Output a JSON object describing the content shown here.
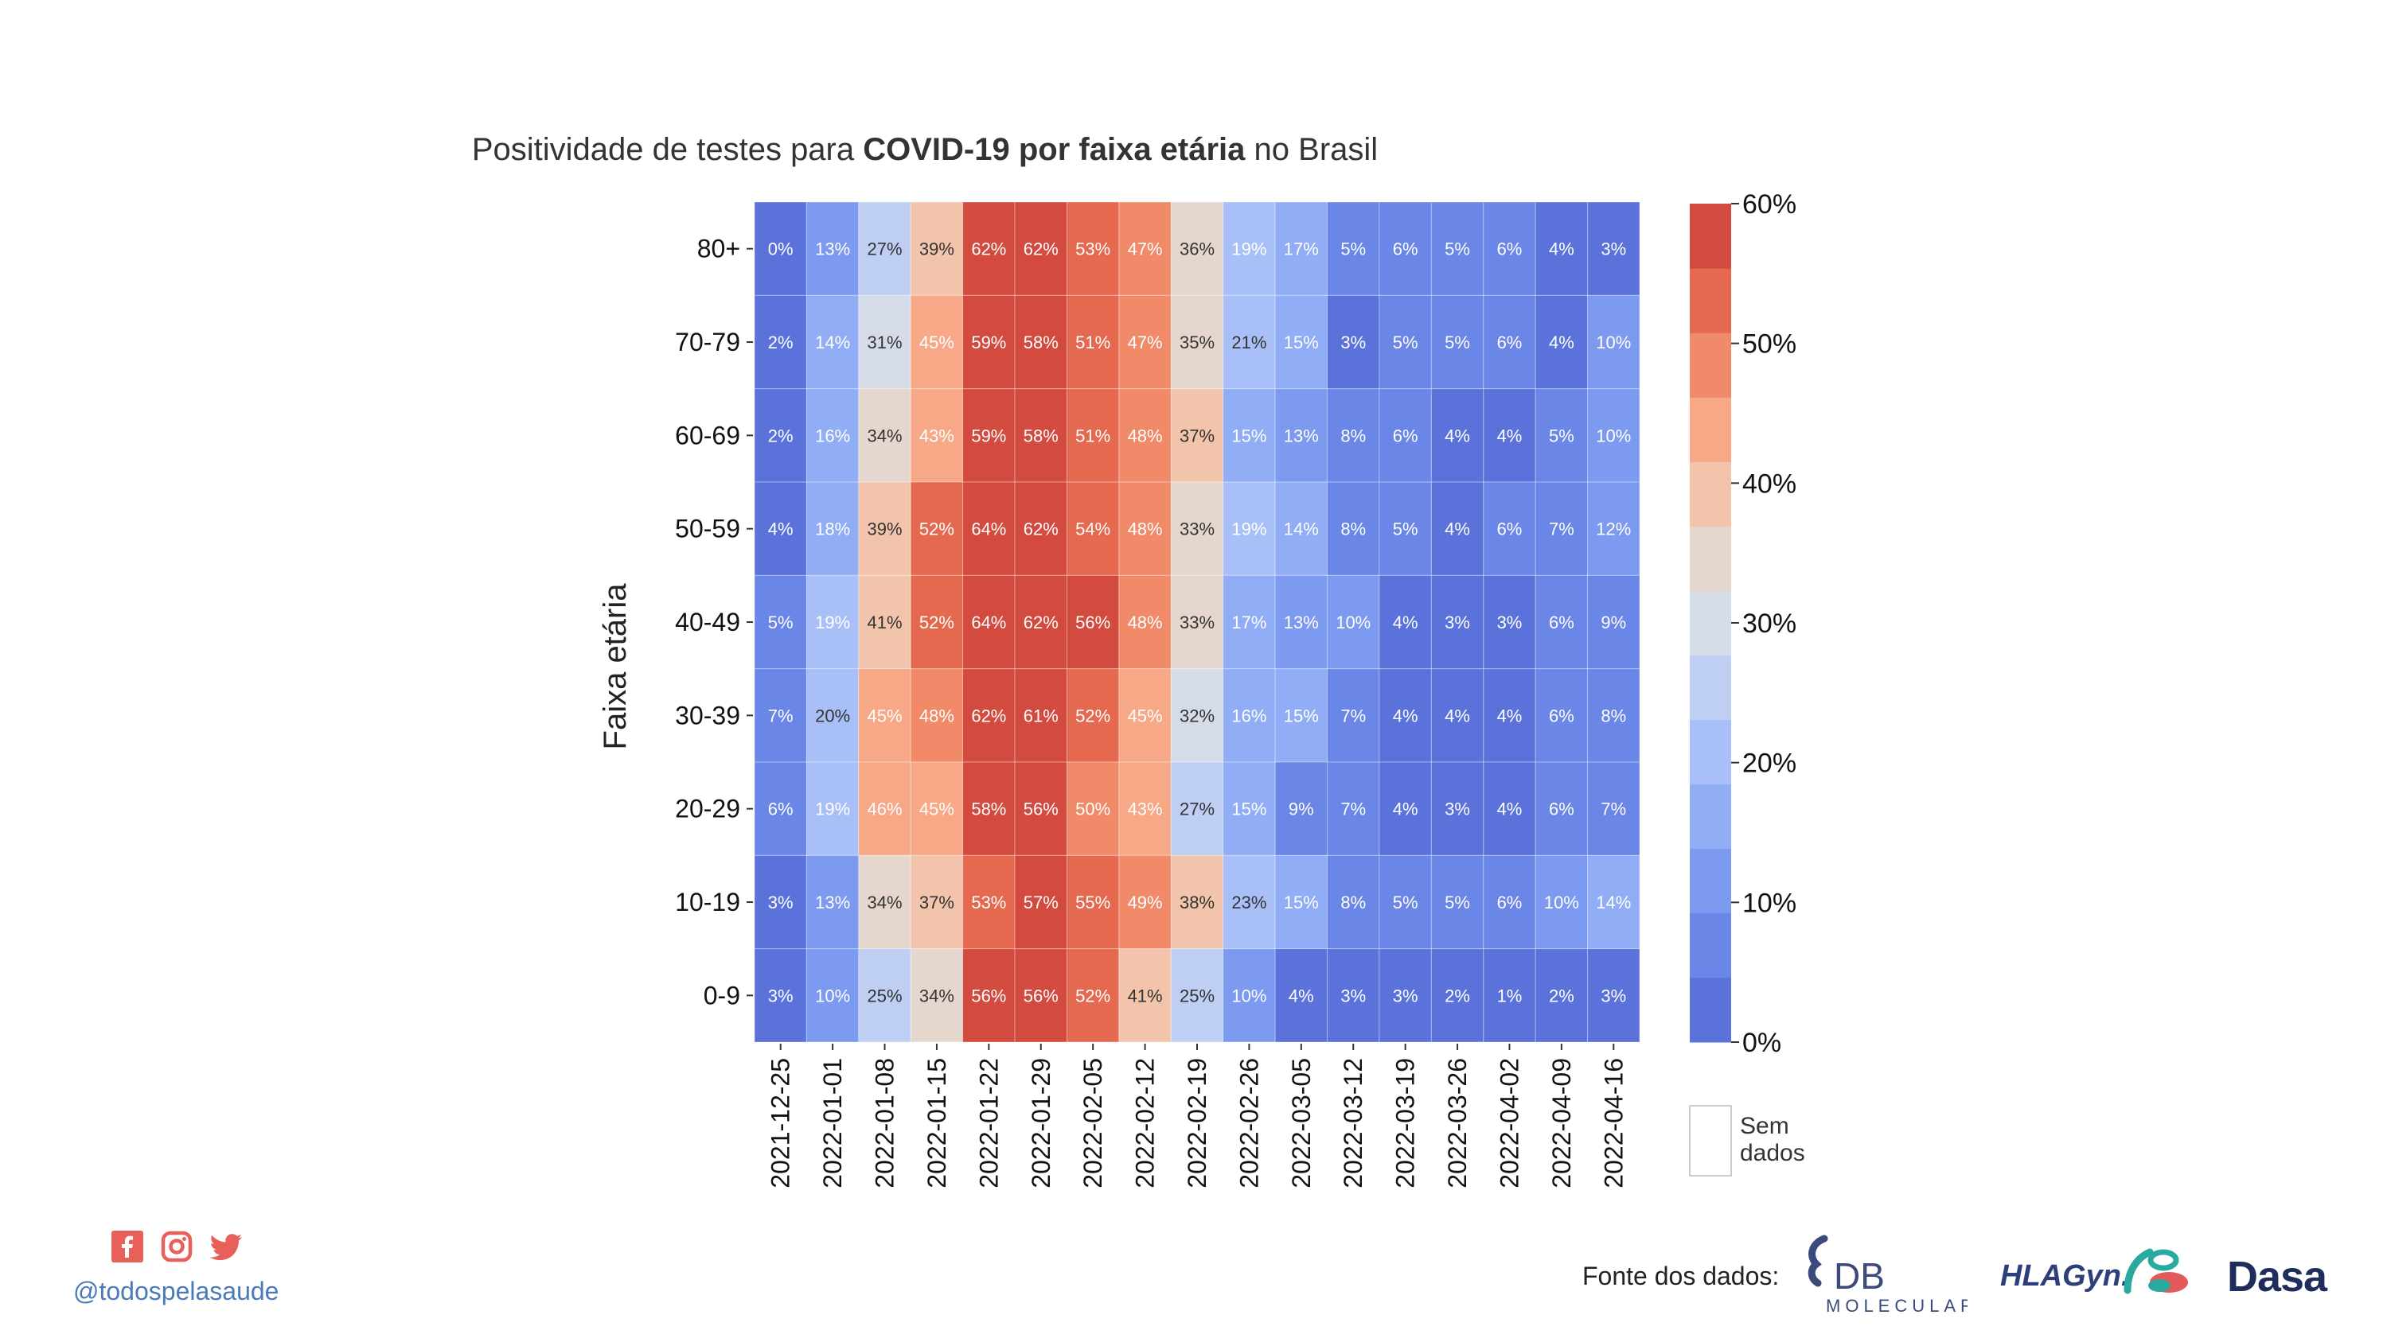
{
  "title_plain_1": "Positividade de testes para ",
  "title_bold": "COVID-19 por faixa etária",
  "title_plain_2": " no Brasil",
  "chart_data": {
    "type": "heatmap",
    "title": "Positividade de testes para COVID-19 por faixa etária no Brasil",
    "ylabel": "Faixa etária",
    "xlabel": "",
    "x": [
      "2021-12-25",
      "2022-01-01",
      "2022-01-08",
      "2022-01-15",
      "2022-01-22",
      "2022-01-29",
      "2022-02-05",
      "2022-02-12",
      "2022-02-19",
      "2022-02-26",
      "2022-03-05",
      "2022-03-12",
      "2022-03-19",
      "2022-03-26",
      "2022-04-02",
      "2022-04-09",
      "2022-04-16"
    ],
    "y": [
      "80+",
      "70-79",
      "60-69",
      "50-59",
      "40-49",
      "30-39",
      "20-29",
      "10-19",
      "0-9"
    ],
    "values": [
      [
        0,
        13,
        27,
        39,
        62,
        62,
        53,
        47,
        36,
        19,
        17,
        5,
        6,
        5,
        6,
        4,
        3
      ],
      [
        2,
        14,
        31,
        45,
        59,
        58,
        51,
        47,
        35,
        21,
        15,
        3,
        5,
        5,
        6,
        4,
        10
      ],
      [
        2,
        16,
        34,
        43,
        59,
        58,
        51,
        48,
        37,
        15,
        13,
        8,
        6,
        4,
        4,
        5,
        10
      ],
      [
        4,
        18,
        39,
        52,
        64,
        62,
        54,
        48,
        33,
        19,
        14,
        8,
        5,
        4,
        6,
        7,
        12
      ],
      [
        5,
        19,
        41,
        52,
        64,
        62,
        56,
        48,
        33,
        17,
        13,
        10,
        4,
        3,
        3,
        6,
        9
      ],
      [
        7,
        20,
        45,
        48,
        62,
        61,
        52,
        45,
        32,
        16,
        15,
        7,
        4,
        4,
        4,
        6,
        8
      ],
      [
        6,
        19,
        46,
        45,
        58,
        56,
        50,
        43,
        27,
        15,
        9,
        7,
        4,
        3,
        4,
        6,
        7
      ],
      [
        3,
        13,
        34,
        37,
        53,
        57,
        55,
        49,
        38,
        23,
        15,
        8,
        5,
        5,
        6,
        10,
        14
      ],
      [
        3,
        10,
        25,
        34,
        56,
        56,
        52,
        41,
        25,
        10,
        4,
        3,
        3,
        2,
        1,
        2,
        3
      ]
    ],
    "value_unit": "%",
    "colorbar": {
      "range": [
        0,
        60
      ],
      "ticks": [
        "0%",
        "10%",
        "20%",
        "30%",
        "40%",
        "50%",
        "60%"
      ],
      "tick_values": [
        0,
        10,
        20,
        30,
        40,
        50,
        60
      ],
      "colors": [
        "#5b72db",
        "#6a86e6",
        "#7c9af0",
        "#91adf5",
        "#a8c0f7",
        "#bfcff3",
        "#d5dce8",
        "#e5d7ce",
        "#f2c4ac",
        "#f6a887",
        "#f08a69",
        "#e5694f",
        "#d34a3e"
      ]
    },
    "no_data_label_1": "Sem",
    "no_data_label_2": "dados",
    "grid": false
  },
  "footer": {
    "handle": "@todospelasaude",
    "social_icons": [
      "facebook-icon",
      "instagram-icon",
      "twitter-icon"
    ],
    "social_color": "#e8605a",
    "source_label": "Fonte dos dados:",
    "logos": {
      "db_molecular_main": "DB",
      "db_molecular_sub": "MOLECULAR",
      "hlagyn": "HLAGyn.",
      "dasa": "Dasa"
    }
  }
}
